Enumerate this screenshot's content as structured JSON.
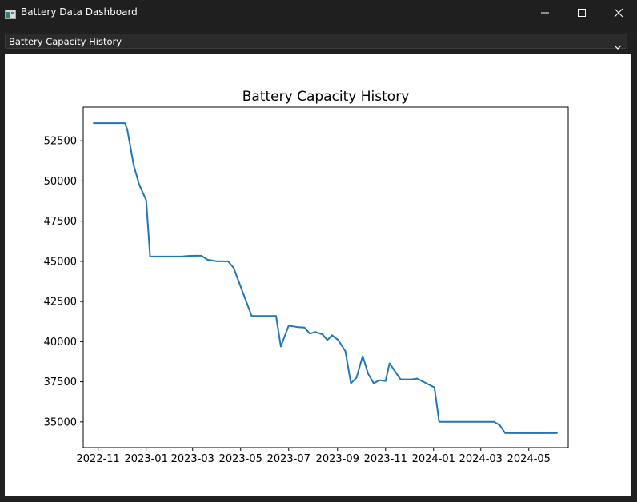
{
  "window": {
    "title": "Battery Data Dashboard",
    "icon": "app-window-icon",
    "controls": [
      "minimize-icon",
      "maximize-icon",
      "close-icon"
    ]
  },
  "selector": {
    "selected": "Battery Capacity History",
    "icon": "chevron-down-icon"
  },
  "colors": {
    "line": "#1f77b4",
    "window_bg": "#202020",
    "titlebar_bg": "#1f1f1f",
    "canvas_bg": "#ffffff"
  },
  "chart_data": {
    "type": "line",
    "title": "Battery Capacity History",
    "xlabel": "",
    "ylabel": "",
    "x_ticks": [
      "2022-11",
      "2023-01",
      "2023-03",
      "2023-05",
      "2023-07",
      "2023-09",
      "2023-11",
      "2024-01",
      "2024-03",
      "2024-05"
    ],
    "y_ticks": [
      "35000",
      "37500",
      "40000",
      "42500",
      "45000",
      "47500",
      "50000",
      "52500"
    ],
    "xlim": [
      "2022-10-13",
      "2024-06-20"
    ],
    "ylim": [
      33400,
      54600
    ],
    "grid": false,
    "legend": "none",
    "series": [
      {
        "x": [
          "2022-10-26",
          "2022-11-05",
          "2022-11-15",
          "2022-11-25",
          "2022-12-05",
          "2022-12-08",
          "2022-12-16",
          "2022-12-23",
          "2023-01-01",
          "2023-01-06",
          "2023-01-22",
          "2023-02-15",
          "2023-02-24",
          "2023-03-05",
          "2023-03-12",
          "2023-03-20",
          "2023-04-01",
          "2023-04-15",
          "2023-04-22",
          "2023-05-15",
          "2023-06-15",
          "2023-06-21",
          "2023-07-01",
          "2023-07-13",
          "2023-07-21",
          "2023-07-28",
          "2023-08-04",
          "2023-08-13",
          "2023-08-19",
          "2023-08-25",
          "2023-09-02",
          "2023-09-11",
          "2023-09-18",
          "2023-09-25",
          "2023-10-03",
          "2023-10-10",
          "2023-10-17",
          "2023-10-24",
          "2023-11-01",
          "2023-11-06",
          "2023-11-20",
          "2023-12-04",
          "2023-12-11",
          "2024-01-02",
          "2024-01-08",
          "2024-01-22",
          "2024-02-05",
          "2024-02-19",
          "2024-03-04",
          "2024-03-18",
          "2024-03-25",
          "2024-04-01",
          "2024-04-22",
          "2024-05-06",
          "2024-05-20",
          "2024-06-06"
        ],
        "y": [
          53600,
          53600,
          53600,
          53600,
          53600,
          53200,
          51000,
          49800,
          48800,
          45300,
          45300,
          45300,
          45340,
          45350,
          45350,
          45100,
          45000,
          45000,
          44600,
          41600,
          41600,
          39700,
          41000,
          40900,
          40880,
          40500,
          40600,
          40450,
          40100,
          40400,
          40100,
          39400,
          37400,
          37750,
          39100,
          38000,
          37400,
          37600,
          37550,
          38650,
          37650,
          37650,
          37700,
          37150,
          35000,
          35000,
          35000,
          35000,
          35000,
          35000,
          34800,
          34300,
          34300,
          34300,
          34300,
          34300
        ]
      }
    ]
  }
}
